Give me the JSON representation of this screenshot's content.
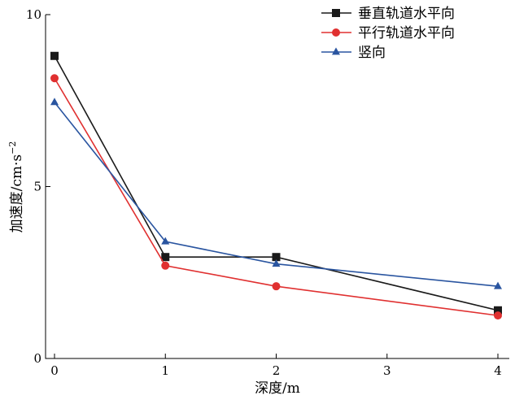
{
  "chart_data": {
    "type": "line",
    "xlabel": "深度/m",
    "ylabel_main": "加速度/cm·s",
    "ylabel_sup": "−2",
    "xlim": [
      -0.1,
      4.1
    ],
    "ylim": [
      0,
      10
    ],
    "xticks": [
      "0",
      "1",
      "2",
      "3",
      "4"
    ],
    "yticks": [
      "0",
      "5",
      "10"
    ],
    "legend_position": "top-right",
    "series": [
      {
        "name": "垂直轨道水平向",
        "color": "#1a1a1a",
        "marker": "square",
        "x": [
          0,
          1,
          2,
          4
        ],
        "y": [
          8.8,
          2.95,
          2.95,
          1.4
        ]
      },
      {
        "name": "平行轨道水平向",
        "color": "#e03030",
        "marker": "circle",
        "x": [
          0,
          1,
          2,
          4
        ],
        "y": [
          8.15,
          2.7,
          2.1,
          1.25
        ]
      },
      {
        "name": "竖向",
        "color": "#2a55a0",
        "marker": "triangle",
        "x": [
          0,
          1,
          2,
          4
        ],
        "y": [
          7.45,
          3.4,
          2.75,
          2.1
        ]
      }
    ]
  }
}
